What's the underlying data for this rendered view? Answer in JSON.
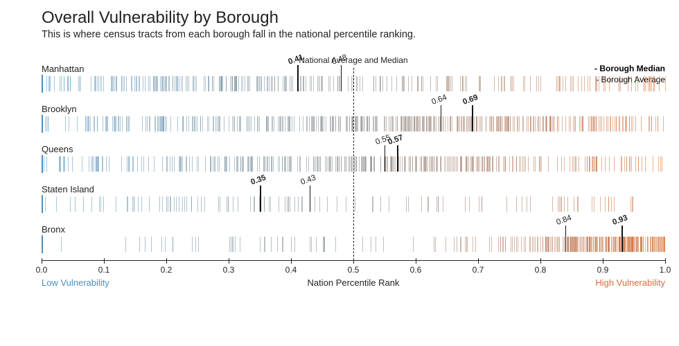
{
  "title": "Overall Vulnerability by Borough",
  "subtitle": "This is where census tracts from each borough fall in the national percentile ranking.",
  "nat_label": "National Average and Median",
  "nat_value": 0.5,
  "legend": {
    "median": "- Borough Median",
    "average": "- Borough Average"
  },
  "xaxis": {
    "label": "Nation Percentile Rank",
    "min": 0.0,
    "max": 1.0,
    "step": 0.1,
    "low_label": "Low Vulnerability",
    "high_label": "High Vulnerability",
    "low_color": "#4a90c2",
    "high_color": "#d96c3a"
  },
  "colors": {
    "low": "#5a9bc4",
    "high": "#d9733b",
    "mid": "#8a8a8a",
    "tick_text": "#222222"
  },
  "strip_opacity": 0.55,
  "boroughs": [
    {
      "name": "Manhattan",
      "median": 0.41,
      "average": 0.48,
      "density": 280,
      "profile": "manhattan"
    },
    {
      "name": "Brooklyn",
      "median": 0.69,
      "average": 0.64,
      "density": 420,
      "profile": "brooklyn"
    },
    {
      "name": "Queens",
      "median": 0.57,
      "average": 0.55,
      "density": 360,
      "profile": "queens"
    },
    {
      "name": "Staten Island",
      "median": 0.35,
      "average": 0.43,
      "density": 110,
      "profile": "staten"
    },
    {
      "name": "Bronx",
      "median": 0.93,
      "average": 0.84,
      "density": 300,
      "profile": "bronx"
    }
  ]
}
